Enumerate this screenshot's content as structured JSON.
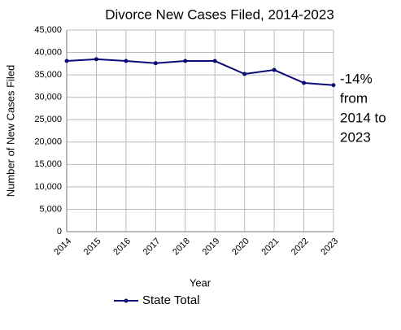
{
  "chart_data": {
    "type": "line",
    "title": "Divorce New Cases Filed, 2014-2023",
    "x_label": "Year",
    "y_label": "Number of New Cases Filed",
    "categories": [
      "2014",
      "2015",
      "2016",
      "2017",
      "2018",
      "2019",
      "2020",
      "2021",
      "2022",
      "2023"
    ],
    "series": [
      {
        "name": "State Total",
        "color": "#0a0a78",
        "values": [
          38100,
          38500,
          38100,
          37600,
          38100,
          38100,
          35200,
          36100,
          33200,
          32700
        ]
      }
    ],
    "ylim": [
      0,
      45000
    ],
    "yticks": [
      {
        "value": 0,
        "label": "0"
      },
      {
        "value": 5000,
        "label": "5,000"
      },
      {
        "value": 10000,
        "label": "10,000"
      },
      {
        "value": 15000,
        "label": "15,000"
      },
      {
        "value": 20000,
        "label": "20,000"
      },
      {
        "value": 25000,
        "label": "25,000"
      },
      {
        "value": 30000,
        "label": "30,000"
      },
      {
        "value": 35000,
        "label": "35,000"
      },
      {
        "value": 40000,
        "label": "40,000"
      },
      {
        "value": 45000,
        "label": "45,000"
      }
    ],
    "grid": true,
    "annotation": [
      "-14%",
      "from",
      "2014 to",
      "2023"
    ]
  }
}
